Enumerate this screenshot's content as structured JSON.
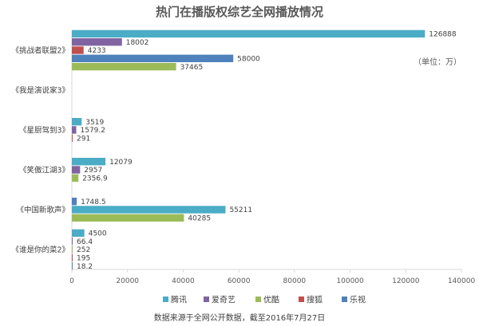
{
  "chart_data": {
    "type": "bar",
    "orientation": "horizontal",
    "title": "热门在播版权综艺全网播放情况",
    "unit_label": "（单位：万）",
    "note": "数据来源于全网公开数据，截至2016年7月27日",
    "categories": [
      "《挑战者联盟2》",
      "《我是演说家3》",
      "《星厨驾到3》",
      "《笑傲江湖3》",
      "《中国新歌声》",
      "《谁是你的菜2》"
    ],
    "series": [
      {
        "name": "腾讯",
        "color": "#4BACC6",
        "values": [
          126888,
          null,
          3519,
          12079,
          55211,
          4500
        ]
      },
      {
        "name": "爱奇艺",
        "color": "#8064A2",
        "values": [
          18002,
          null,
          1579.2,
          2957,
          null,
          66.4
        ]
      },
      {
        "name": "优酷",
        "color": "#9BBB59",
        "values": [
          37465,
          null,
          null,
          2356.9,
          40285,
          252
        ]
      },
      {
        "name": "搜狐",
        "color": "#C0504D",
        "values": [
          4233,
          null,
          291,
          null,
          null,
          195
        ]
      },
      {
        "name": "乐视",
        "color": "#4F81BD",
        "values": [
          58000,
          null,
          null,
          null,
          1748.5,
          18.2
        ]
      }
    ],
    "bar_order": [
      [
        0,
        1,
        3,
        4,
        2
      ],
      [],
      [
        0,
        1,
        3
      ],
      [
        0,
        1,
        2
      ],
      [
        4,
        0,
        2
      ],
      [
        0,
        1,
        2,
        3,
        4
      ]
    ],
    "xlim": [
      0,
      140000
    ],
    "x_ticks": [
      0,
      20000,
      40000,
      60000,
      80000,
      100000,
      120000,
      140000
    ],
    "legend_position": "bottom",
    "grid": false
  }
}
